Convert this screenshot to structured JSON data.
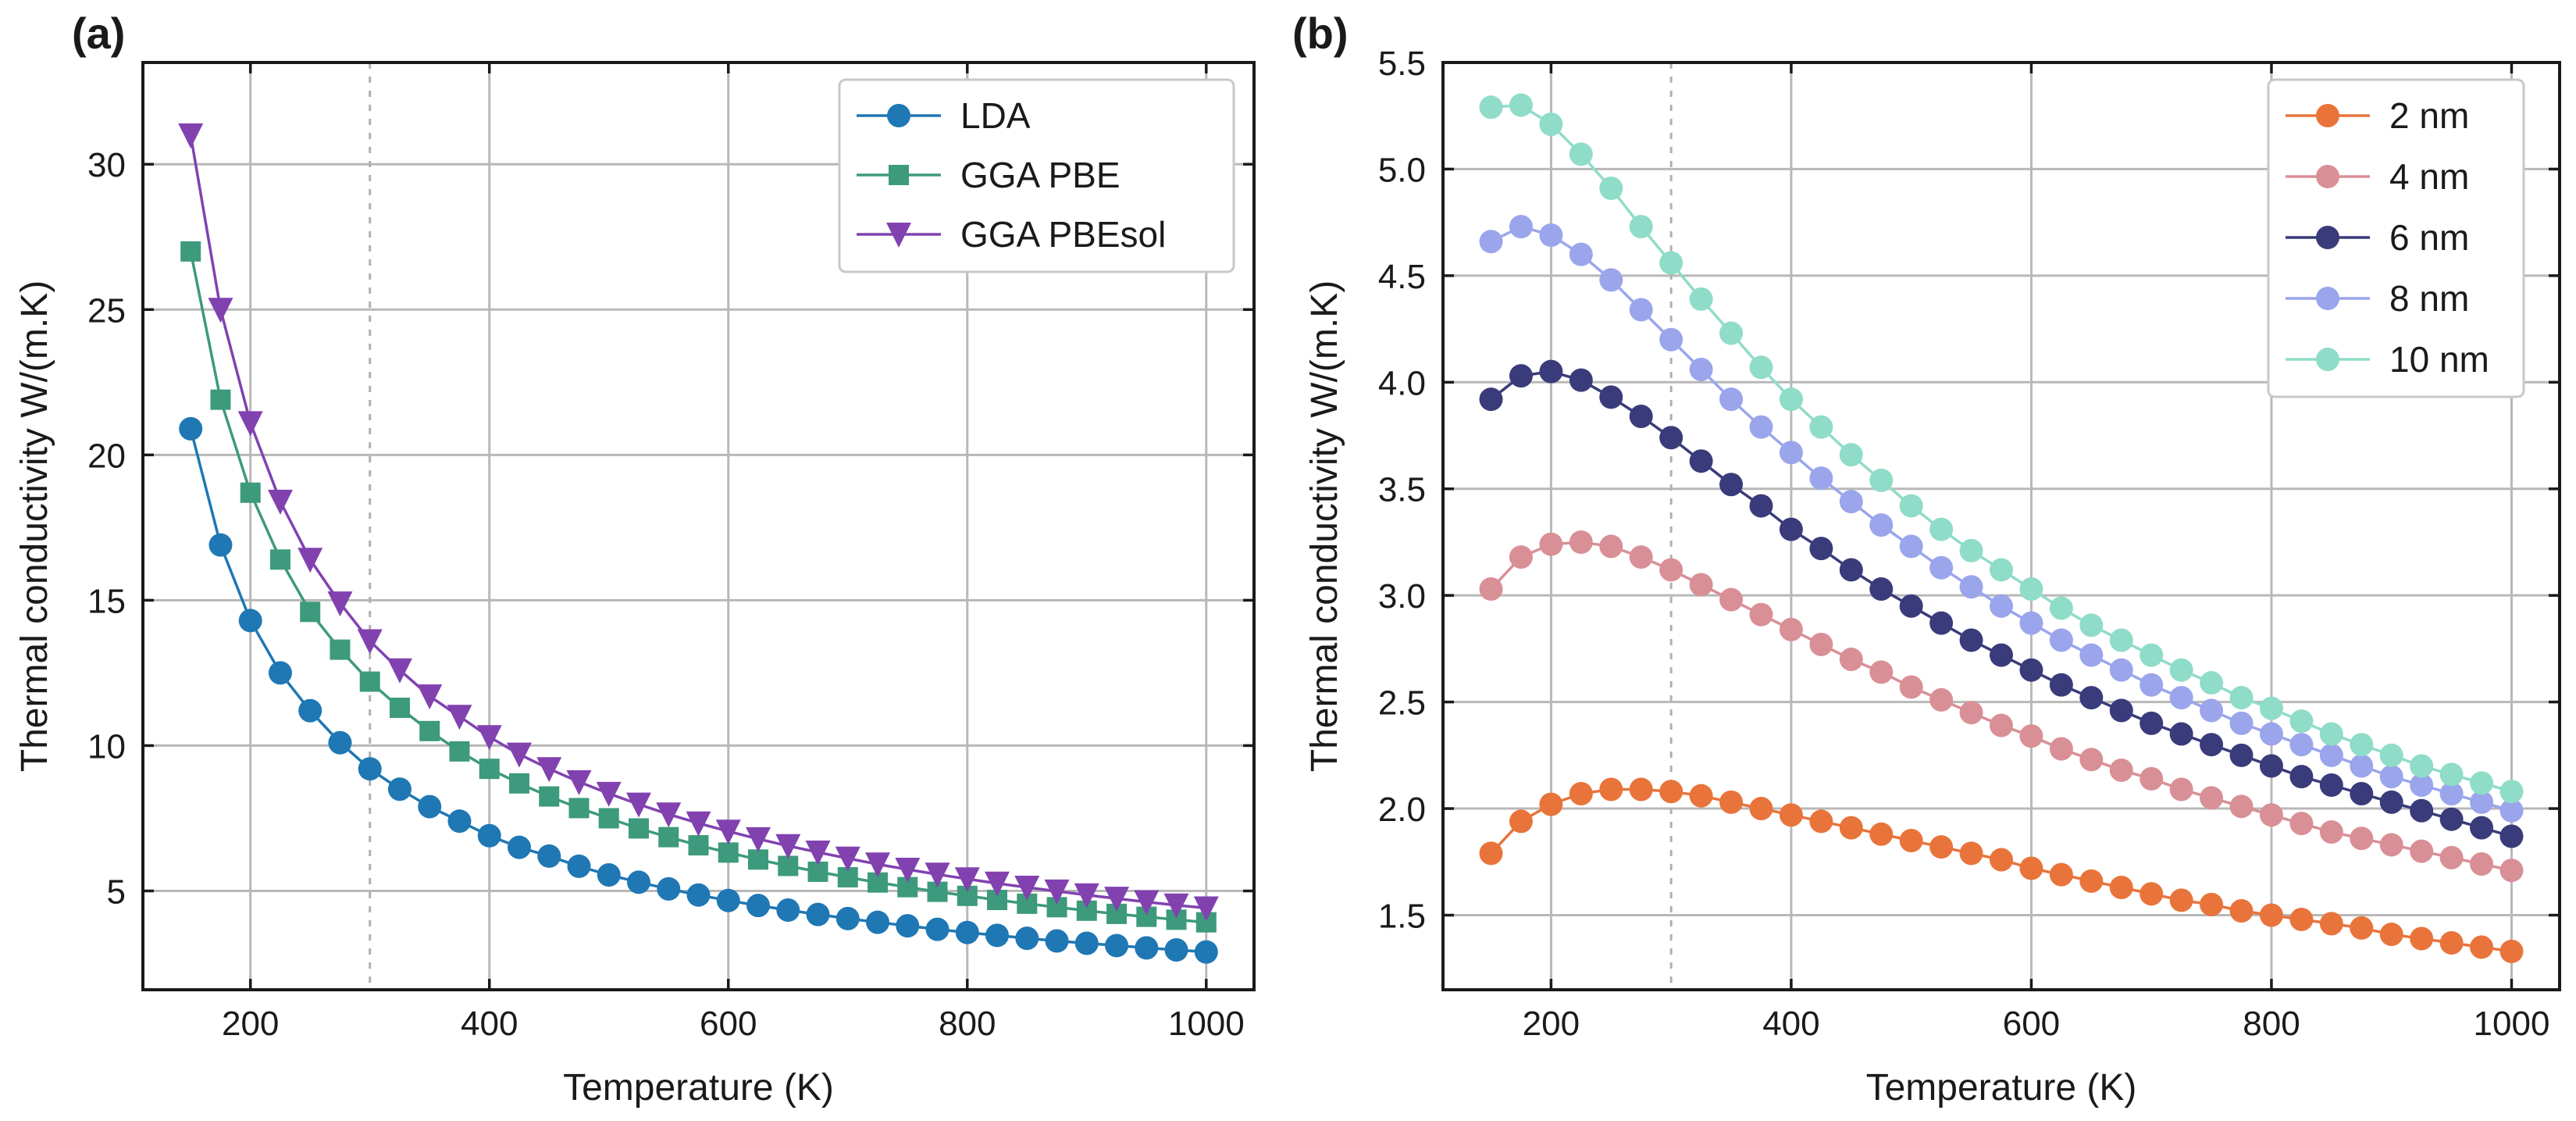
{
  "chart_data": [
    {
      "type": "line",
      "panel_label": "(a)",
      "xlabel": "Temperature (K)",
      "ylabel": "Thermal conductivity W/(m.K)",
      "xlim": [
        110,
        1040
      ],
      "ylim": [
        1.6,
        33.5
      ],
      "xticks": [
        200,
        400,
        600,
        800,
        1000
      ],
      "yticks": [
        5,
        10,
        15,
        20,
        25,
        30
      ],
      "grid": true,
      "reference_line_x": 300,
      "legend_position": "top-right",
      "x": [
        150,
        175,
        200,
        225,
        250,
        275,
        300,
        325,
        350,
        375,
        400,
        425,
        450,
        475,
        500,
        525,
        550,
        575,
        600,
        625,
        650,
        675,
        700,
        725,
        750,
        775,
        800,
        825,
        850,
        875,
        900,
        925,
        950,
        975,
        1000
      ],
      "series": [
        {
          "name": "LDA",
          "color": "#1f77b4",
          "marker": "circle",
          "values": [
            20.9,
            16.9,
            14.3,
            12.5,
            11.2,
            10.1,
            9.2,
            8.5,
            7.9,
            7.4,
            6.9,
            6.5,
            6.2,
            5.85,
            5.55,
            5.3,
            5.07,
            4.86,
            4.67,
            4.5,
            4.34,
            4.19,
            4.05,
            3.92,
            3.8,
            3.68,
            3.57,
            3.47,
            3.37,
            3.28,
            3.2,
            3.12,
            3.04,
            2.97,
            2.9
          ]
        },
        {
          "name": "GGA PBE",
          "color": "#3d9a7c",
          "marker": "square",
          "values": [
            27.0,
            21.9,
            18.7,
            16.4,
            14.6,
            13.3,
            12.2,
            11.3,
            10.5,
            9.8,
            9.2,
            8.7,
            8.25,
            7.85,
            7.5,
            7.15,
            6.85,
            6.57,
            6.32,
            6.08,
            5.86,
            5.66,
            5.47,
            5.29,
            5.13,
            4.97,
            4.83,
            4.69,
            4.56,
            4.44,
            4.32,
            4.21,
            4.11,
            4.01,
            3.92
          ]
        },
        {
          "name": "GGA PBEsol",
          "color": "#8142b0",
          "marker": "triangle-down",
          "values": [
            31.0,
            25.0,
            21.1,
            18.4,
            16.4,
            14.9,
            13.6,
            12.6,
            11.7,
            11.0,
            10.3,
            9.7,
            9.2,
            8.75,
            8.35,
            7.98,
            7.64,
            7.33,
            7.05,
            6.79,
            6.55,
            6.33,
            6.12,
            5.92,
            5.74,
            5.57,
            5.41,
            5.26,
            5.12,
            4.99,
            4.86,
            4.74,
            4.62,
            4.51,
            4.41
          ]
        }
      ]
    },
    {
      "type": "line",
      "panel_label": "(b)",
      "xlabel": "Temperature (K)",
      "ylabel": "Thermal conductivity W/(m.K)",
      "xlim": [
        110,
        1040
      ],
      "ylim": [
        1.15,
        5.5
      ],
      "xticks": [
        200,
        400,
        600,
        800,
        1000
      ],
      "yticks": [
        1.5,
        2.0,
        2.5,
        3.0,
        3.5,
        4.0,
        4.5,
        5.0,
        5.5
      ],
      "ytick_labels": [
        "1.5",
        "2.0",
        "2.5",
        "3.0",
        "3.5",
        "4.0",
        "4.5",
        "5.0",
        "5.5"
      ],
      "grid": true,
      "reference_line_x": 300,
      "legend_position": "top-right",
      "x": [
        150,
        175,
        200,
        225,
        250,
        275,
        300,
        325,
        350,
        375,
        400,
        425,
        450,
        475,
        500,
        525,
        550,
        575,
        600,
        625,
        650,
        675,
        700,
        725,
        750,
        775,
        800,
        825,
        850,
        875,
        900,
        925,
        950,
        975,
        1000
      ],
      "series": [
        {
          "name": "2 nm",
          "color": "#e8743b",
          "marker": "circle",
          "values": [
            1.79,
            1.94,
            2.02,
            2.07,
            2.09,
            2.09,
            2.08,
            2.06,
            2.03,
            2.0,
            1.97,
            1.94,
            1.91,
            1.88,
            1.85,
            1.82,
            1.79,
            1.76,
            1.72,
            1.69,
            1.66,
            1.63,
            1.6,
            1.57,
            1.55,
            1.52,
            1.5,
            1.48,
            1.46,
            1.44,
            1.41,
            1.39,
            1.37,
            1.35,
            1.33
          ]
        },
        {
          "name": "4 nm",
          "color": "#d98f96",
          "marker": "circle",
          "values": [
            3.03,
            3.18,
            3.24,
            3.25,
            3.23,
            3.18,
            3.12,
            3.05,
            2.98,
            2.91,
            2.84,
            2.77,
            2.7,
            2.64,
            2.57,
            2.51,
            2.45,
            2.39,
            2.34,
            2.28,
            2.23,
            2.18,
            2.14,
            2.09,
            2.05,
            2.01,
            1.97,
            1.93,
            1.89,
            1.86,
            1.83,
            1.8,
            1.77,
            1.74,
            1.71
          ]
        },
        {
          "name": "6 nm",
          "color": "#3a3b7a",
          "marker": "circle",
          "values": [
            3.92,
            4.03,
            4.05,
            4.01,
            3.93,
            3.84,
            3.74,
            3.63,
            3.52,
            3.42,
            3.31,
            3.22,
            3.12,
            3.03,
            2.95,
            2.87,
            2.79,
            2.72,
            2.65,
            2.58,
            2.52,
            2.46,
            2.4,
            2.35,
            2.3,
            2.25,
            2.2,
            2.15,
            2.11,
            2.07,
            2.03,
            1.99,
            1.95,
            1.91,
            1.87
          ]
        },
        {
          "name": "8 nm",
          "color": "#9aa5ec",
          "marker": "circle",
          "values": [
            4.66,
            4.73,
            4.69,
            4.6,
            4.48,
            4.34,
            4.2,
            4.06,
            3.92,
            3.79,
            3.67,
            3.55,
            3.44,
            3.33,
            3.23,
            3.13,
            3.04,
            2.95,
            2.87,
            2.79,
            2.72,
            2.65,
            2.58,
            2.52,
            2.46,
            2.4,
            2.35,
            2.3,
            2.25,
            2.2,
            2.15,
            2.11,
            2.07,
            2.03,
            1.99
          ]
        },
        {
          "name": "10 nm",
          "color": "#8fdcc8",
          "marker": "circle",
          "values": [
            5.29,
            5.3,
            5.21,
            5.07,
            4.91,
            4.73,
            4.56,
            4.39,
            4.23,
            4.07,
            3.92,
            3.79,
            3.66,
            3.54,
            3.42,
            3.31,
            3.21,
            3.12,
            3.03,
            2.94,
            2.86,
            2.79,
            2.72,
            2.65,
            2.59,
            2.52,
            2.47,
            2.41,
            2.35,
            2.3,
            2.25,
            2.2,
            2.16,
            2.12,
            2.08
          ]
        }
      ]
    }
  ]
}
